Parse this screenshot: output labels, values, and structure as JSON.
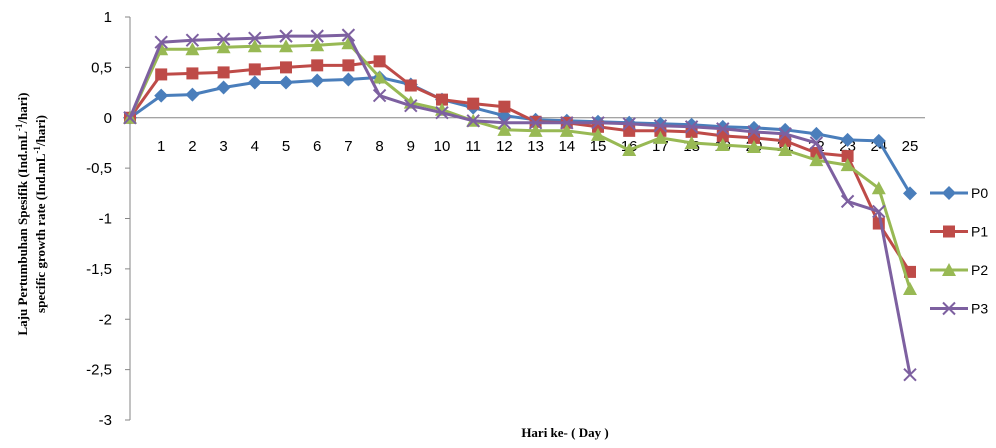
{
  "chart_data": {
    "type": "line",
    "title": "",
    "xlabel": "Hari ke- ( Day )",
    "ylabel_line1_pre": "Laju Pertumbuhan Spesifik (Ind.mL",
    "ylabel_line1_sup": "-1",
    "ylabel_line1_post": "/hari)",
    "ylabel_line2_pre": "specific growth rate (Ind.mL",
    "ylabel_line2_sup": "-1",
    "ylabel_line2_post": "/hari)",
    "ylim": [
      -3,
      1
    ],
    "yticks": [
      1,
      0.5,
      0,
      -0.5,
      -1,
      -1.5,
      -2,
      -2.5,
      -3
    ],
    "ytick_labels": [
      "1",
      "0,5",
      "0",
      "-0,5",
      "-1",
      "-1,5",
      "-2",
      "-2,5",
      "-3"
    ],
    "x": [
      0,
      1,
      2,
      3,
      4,
      5,
      6,
      7,
      8,
      9,
      10,
      11,
      12,
      13,
      14,
      15,
      16,
      17,
      18,
      19,
      20,
      21,
      22,
      23,
      24,
      25
    ],
    "x_tick_labels": [
      "1",
      "2",
      "3",
      "4",
      "5",
      "6",
      "7",
      "8",
      "9",
      "10",
      "11",
      "12",
      "13",
      "14",
      "15",
      "16",
      "17",
      "18",
      "19",
      "20",
      "21",
      "22",
      "23",
      "24",
      "25"
    ],
    "grid": false,
    "legend_position": "right",
    "series": [
      {
        "name": "P0",
        "color": "#4a7ebb",
        "marker": "diamond",
        "values": [
          0,
          0.22,
          0.23,
          0.3,
          0.35,
          0.35,
          0.37,
          0.38,
          0.4,
          0.33,
          0.18,
          0.1,
          0.02,
          -0.02,
          -0.03,
          -0.04,
          -0.05,
          -0.06,
          -0.07,
          -0.09,
          -0.1,
          -0.12,
          -0.16,
          -0.22,
          -0.23,
          -0.75
        ]
      },
      {
        "name": "P1",
        "color": "#be4b48",
        "marker": "square",
        "values": [
          0,
          0.43,
          0.44,
          0.45,
          0.48,
          0.5,
          0.52,
          0.52,
          0.56,
          0.32,
          0.18,
          0.14,
          0.11,
          -0.04,
          -0.05,
          -0.09,
          -0.13,
          -0.13,
          -0.14,
          -0.18,
          -0.2,
          -0.23,
          -0.35,
          -0.38,
          -1.05,
          -1.53
        ]
      },
      {
        "name": "P2",
        "color": "#98b954",
        "marker": "triangle",
        "values": [
          0,
          0.68,
          0.68,
          0.7,
          0.71,
          0.71,
          0.72,
          0.74,
          0.4,
          0.15,
          0.08,
          -0.03,
          -0.12,
          -0.13,
          -0.13,
          -0.17,
          -0.32,
          -0.2,
          -0.25,
          -0.27,
          -0.29,
          -0.32,
          -0.42,
          -0.47,
          -0.7,
          -1.7
        ]
      },
      {
        "name": "P3",
        "color": "#7d60a0",
        "marker": "x",
        "values": [
          0,
          0.75,
          0.77,
          0.78,
          0.79,
          0.81,
          0.81,
          0.82,
          0.22,
          0.12,
          0.05,
          -0.03,
          -0.05,
          -0.05,
          -0.05,
          -0.05,
          -0.06,
          -0.08,
          -0.09,
          -0.11,
          -0.14,
          -0.16,
          -0.25,
          -0.83,
          -0.93,
          -2.55
        ]
      }
    ]
  }
}
